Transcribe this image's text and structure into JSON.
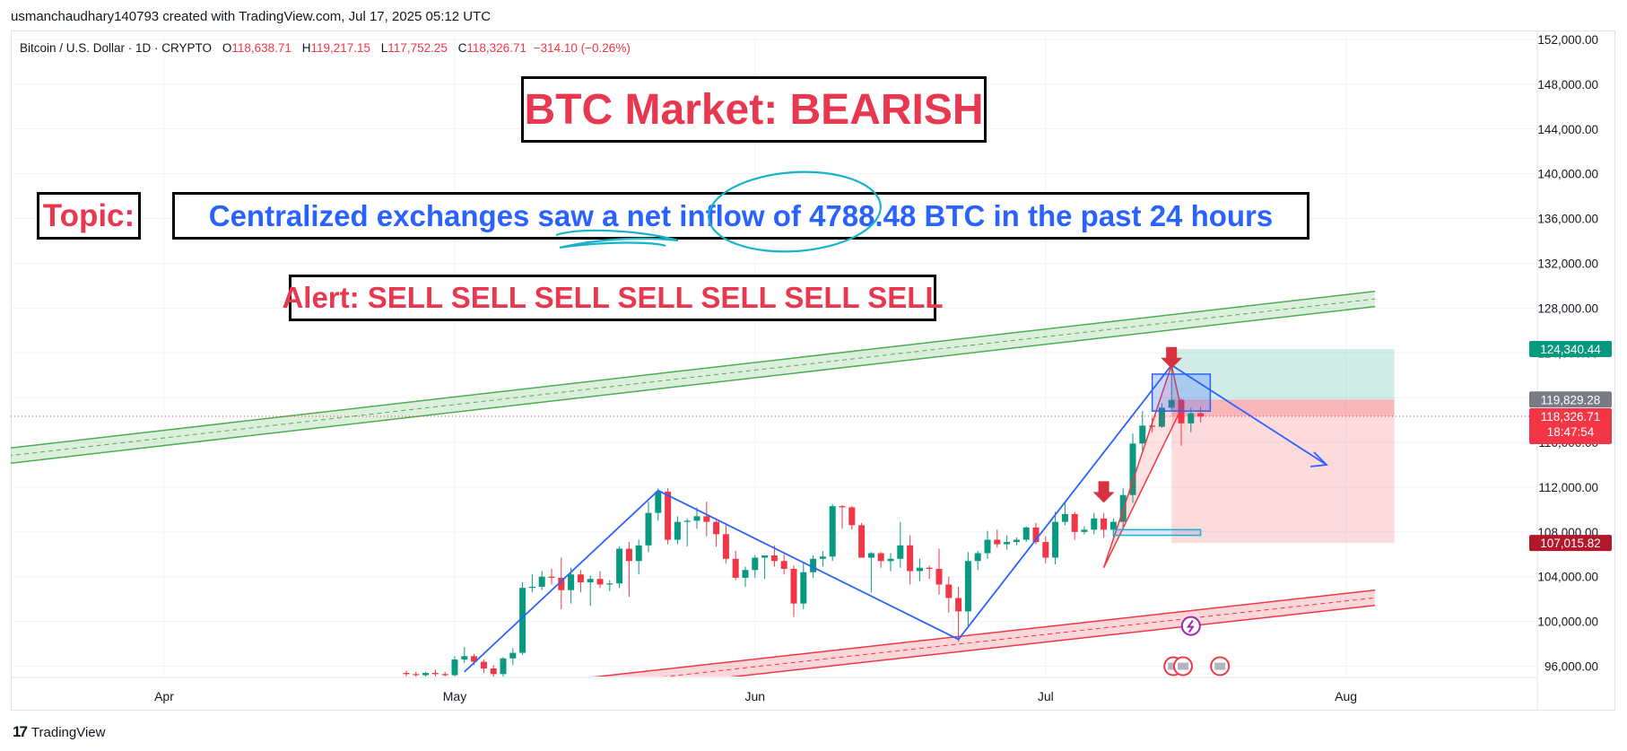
{
  "header": {
    "credit": "usmanchaudhary140793 created with TradingView.com, Jul 17, 2025 05:12 UTC"
  },
  "symbol": {
    "name": "Bitcoin / U.S. Dollar · 1D · CRYPTO",
    "o_label": "O",
    "o_value": "118,638.71",
    "h_label": "H",
    "h_value": "119,217.15",
    "l_label": "L",
    "l_value": "117,752.25",
    "c_label": "C",
    "c_value": "118,326.71",
    "change": "−314.10 (−0.26%)"
  },
  "annotations": {
    "title": "BTC Market: BEARISH",
    "topic": "Topic:",
    "headline": "Centralized exchanges saw a net inflow of 4788.48 BTC in the past 24 hours",
    "alert": "Alert: SELL SELL SELL SELL SELL SELL SELL"
  },
  "price_tags": {
    "target": "124,340.44",
    "entry": "119,829.28",
    "last": "118,326.71",
    "countdown": "18:47:54",
    "stop": "107,015.82"
  },
  "footer": {
    "brand": "TradingView"
  },
  "colors": {
    "up": "#089981",
    "down": "#f23645",
    "channel_upper": "#4caf50",
    "channel_lower": "#f23645",
    "pattern_line": "#2962ff",
    "annotation_red": "#e8384f",
    "annotation_blue": "#2962ff",
    "target_tag": "#089981",
    "stop_tag": "#b2182b",
    "entry_tag": "#787b86"
  },
  "chart_data": {
    "type": "candlestick",
    "x_ticks": [
      "Apr",
      "May",
      "Jun",
      "Jul",
      "Aug"
    ],
    "y_ticks": [
      "152,000.00",
      "148,000.00",
      "144,000.00",
      "140,000.00",
      "136,000.00",
      "132,000.00",
      "128,000.00",
      "124,000.00",
      "120,000.00",
      "116,000.00",
      "112,000.00",
      "108,000.00",
      "104,000.00",
      "100,000.00",
      "96,000.00"
    ],
    "ylim": [
      95000,
      152000
    ],
    "last_price": 118326.71,
    "position": {
      "target": 124340.44,
      "entry": 119829.28,
      "stop": 107015.82,
      "start_date": "2025-07-14",
      "end_date": "2025-08-06"
    },
    "upper_channel": {
      "from": [
        "2025-03-01",
        114000
      ],
      "to": [
        "2025-08-04",
        129500
      ]
    },
    "lower_channel": {
      "from": [
        "2025-05-15",
        95000
      ],
      "to": [
        "2025-08-04",
        102800
      ]
    },
    "zigzag": [
      [
        "2025-05-02",
        95500
      ],
      [
        "2025-05-22",
        111700
      ],
      [
        "2025-06-22",
        98400
      ],
      [
        "2025-07-14",
        122900
      ],
      [
        "2025-07-30",
        114000
      ]
    ],
    "candles": [
      [
        "2025-04-26",
        95400,
        95600,
        95100,
        95300
      ],
      [
        "2025-04-27",
        95300,
        95500,
        95000,
        95200
      ],
      [
        "2025-04-28",
        95200,
        95500,
        95000,
        95400
      ],
      [
        "2025-04-29",
        95400,
        95700,
        95100,
        95300
      ],
      [
        "2025-04-30",
        95300,
        95500,
        95000,
        95200
      ],
      [
        "2025-05-01",
        95200,
        96900,
        95000,
        96600
      ],
      [
        "2025-05-02",
        96600,
        97700,
        96300,
        96900
      ],
      [
        "2025-05-03",
        96900,
        97100,
        96100,
        96400
      ],
      [
        "2025-05-04",
        96400,
        96600,
        95400,
        95800
      ],
      [
        "2025-05-05",
        95800,
        96100,
        95000,
        95300
      ],
      [
        "2025-05-06",
        95300,
        96800,
        95000,
        96700
      ],
      [
        "2025-05-07",
        96700,
        97600,
        96100,
        97200
      ],
      [
        "2025-05-08",
        97200,
        103500,
        97000,
        103000
      ],
      [
        "2025-05-09",
        103000,
        104200,
        102600,
        103100
      ],
      [
        "2025-05-10",
        103100,
        104500,
        102800,
        104000
      ],
      [
        "2025-05-11",
        104000,
        104700,
        103300,
        103900
      ],
      [
        "2025-05-12",
        103900,
        105700,
        101100,
        102800
      ],
      [
        "2025-05-13",
        102800,
        104800,
        101600,
        104200
      ],
      [
        "2025-05-14",
        104200,
        104600,
        102600,
        103500
      ],
      [
        "2025-05-15",
        103500,
        104100,
        101400,
        103800
      ],
      [
        "2025-05-16",
        103800,
        104500,
        103000,
        103300
      ],
      [
        "2025-05-17",
        103300,
        103700,
        102700,
        103400
      ],
      [
        "2025-05-18",
        103400,
        106700,
        103000,
        106500
      ],
      [
        "2025-05-19",
        106500,
        107100,
        102200,
        105400
      ],
      [
        "2025-05-20",
        105400,
        107300,
        104200,
        106800
      ],
      [
        "2025-05-21",
        106800,
        110700,
        106200,
        109700
      ],
      [
        "2025-05-22",
        109700,
        111900,
        109000,
        111600
      ],
      [
        "2025-05-23",
        111600,
        111900,
        106900,
        107300
      ],
      [
        "2025-05-24",
        107300,
        109400,
        106900,
        108900
      ],
      [
        "2025-05-25",
        108900,
        109200,
        106700,
        109000
      ],
      [
        "2025-05-26",
        109000,
        110200,
        108300,
        109400
      ],
      [
        "2025-05-27",
        109400,
        110700,
        107600,
        108900
      ],
      [
        "2025-05-28",
        108900,
        109200,
        106700,
        107800
      ],
      [
        "2025-05-29",
        107800,
        108800,
        105200,
        105600
      ],
      [
        "2025-05-30",
        105600,
        106300,
        103700,
        103900
      ],
      [
        "2025-05-31",
        103900,
        104900,
        103100,
        104600
      ],
      [
        "2025-06-01",
        104600,
        105900,
        103900,
        105700
      ],
      [
        "2025-06-02",
        105700,
        105900,
        103800,
        105900
      ],
      [
        "2025-06-03",
        105900,
        106800,
        104900,
        105400
      ],
      [
        "2025-06-04",
        105400,
        106000,
        104200,
        104700
      ],
      [
        "2025-06-05",
        104700,
        105000,
        100400,
        101600
      ],
      [
        "2025-06-06",
        101600,
        105300,
        101100,
        104400
      ],
      [
        "2025-06-07",
        104400,
        105900,
        103900,
        105600
      ],
      [
        "2025-06-08",
        105600,
        106300,
        104900,
        105800
      ],
      [
        "2025-06-09",
        105800,
        110500,
        105400,
        110300
      ],
      [
        "2025-06-10",
        110300,
        110400,
        108300,
        110200
      ],
      [
        "2025-06-11",
        110200,
        110300,
        108200,
        108600
      ],
      [
        "2025-06-12",
        108600,
        108800,
        105700,
        105700
      ],
      [
        "2025-06-13",
        105700,
        106200,
        102600,
        106100
      ],
      [
        "2025-06-14",
        106100,
        106200,
        104800,
        105400
      ],
      [
        "2025-06-15",
        105400,
        106100,
        104500,
        105600
      ],
      [
        "2025-06-16",
        105600,
        108900,
        104800,
        106800
      ],
      [
        "2025-06-17",
        106800,
        107700,
        103300,
        104500
      ],
      [
        "2025-06-18",
        104500,
        105600,
        103600,
        104800
      ],
      [
        "2025-06-19",
        104800,
        105000,
        103800,
        104700
      ],
      [
        "2025-06-20",
        104700,
        106500,
        102400,
        103300
      ],
      [
        "2025-06-21",
        103300,
        104000,
        100800,
        102100
      ],
      [
        "2025-06-22",
        102100,
        103100,
        98200,
        100900
      ],
      [
        "2025-06-23",
        100900,
        106200,
        99600,
        105400
      ],
      [
        "2025-06-24",
        105400,
        106300,
        104600,
        106100
      ],
      [
        "2025-06-25",
        106100,
        108100,
        105600,
        107300
      ],
      [
        "2025-06-26",
        107300,
        108200,
        106600,
        106900
      ],
      [
        "2025-06-27",
        106900,
        107700,
        106400,
        107100
      ],
      [
        "2025-06-28",
        107100,
        107500,
        106800,
        107300
      ],
      [
        "2025-06-29",
        107300,
        108500,
        107100,
        108400
      ],
      [
        "2025-06-30",
        108400,
        108800,
        106900,
        107100
      ],
      [
        "2025-07-01",
        107100,
        107600,
        105200,
        105700
      ],
      [
        "2025-07-02",
        105700,
        109800,
        105100,
        108900
      ],
      [
        "2025-07-03",
        108900,
        110600,
        108600,
        109600
      ],
      [
        "2025-07-04",
        109600,
        109800,
        107300,
        108000
      ],
      [
        "2025-07-05",
        108000,
        108500,
        107800,
        108200
      ],
      [
        "2025-07-06",
        108200,
        109700,
        107800,
        109200
      ],
      [
        "2025-07-07",
        109200,
        109700,
        107500,
        108200
      ],
      [
        "2025-07-08",
        108200,
        109200,
        107500,
        108900
      ],
      [
        "2025-07-09",
        108900,
        111900,
        108400,
        111300
      ],
      [
        "2025-07-10",
        111300,
        116800,
        110600,
        115900
      ],
      [
        "2025-07-11",
        115900,
        118800,
        115300,
        117500
      ],
      [
        "2025-07-12",
        117500,
        118200,
        116900,
        117400
      ],
      [
        "2025-07-13",
        117400,
        119500,
        117300,
        119100
      ],
      [
        "2025-07-14",
        119100,
        123200,
        118900,
        119800
      ],
      [
        "2025-07-15",
        119800,
        119900,
        115700,
        117700
      ],
      [
        "2025-07-16",
        117700,
        119100,
        116900,
        118600
      ],
      [
        "2025-07-17",
        118600,
        119200,
        117800,
        118300
      ]
    ]
  }
}
